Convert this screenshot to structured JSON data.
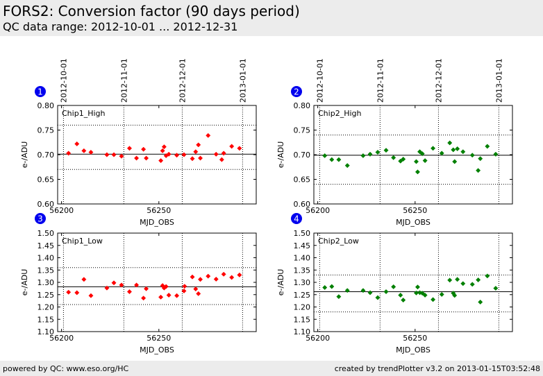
{
  "header": {
    "title": "FORS2: Conversion factor (90 days period)",
    "subtitle": "QC data range: 2012-10-01 ... 2012-12-31"
  },
  "footer": {
    "left": "powered by QC: www.eso.org/HC",
    "right": "created by trendPlotter v3.2 on 2013-01-15T03:52:48"
  },
  "colors": {
    "red_series": "#ff0000",
    "green_series": "#008000",
    "badge": "#0000ee",
    "header_bg": "#ececec"
  },
  "chart_data": [
    {
      "type": "scatter",
      "panel": "1",
      "label": "Chip1_High",
      "color": "#ff0000",
      "xlabel": "MJD_OBS",
      "ylabel": "e-/ADU",
      "xlim": [
        56198,
        56300
      ],
      "ylim": [
        0.6,
        0.8
      ],
      "yticks": [
        "0.60",
        "0.65",
        "0.70",
        "0.75",
        "0.80"
      ],
      "xticks": [
        56200,
        56250
      ],
      "date_ticks": [
        {
          "label": "2012-10-01",
          "x": 56201
        },
        {
          "label": "2012-11-01",
          "x": 56232
        },
        {
          "label": "2012-12-01",
          "x": 56262
        },
        {
          "label": "2013-01-01",
          "x": 56293
        }
      ],
      "mean": 0.701,
      "limits": [
        0.67,
        0.76
      ],
      "x": [
        56203.6,
        56207.9,
        56211.5,
        56215.1,
        56223.3,
        56226.9,
        56230.8,
        56234.9,
        56238.5,
        56242.1,
        56243.5,
        56251.0,
        56251.9,
        56252.7,
        56253.7,
        56255.1,
        56259.2,
        56262.9,
        56267.2,
        56268.9,
        56270.3,
        56271.3,
        56275.3,
        56279.4,
        56282.3,
        56283.3,
        56287.4,
        56291.4
      ],
      "y": [
        0.703,
        0.722,
        0.708,
        0.705,
        0.7,
        0.7,
        0.697,
        0.713,
        0.693,
        0.711,
        0.693,
        0.688,
        0.708,
        0.716,
        0.698,
        0.701,
        0.699,
        0.7,
        0.692,
        0.706,
        0.72,
        0.693,
        0.739,
        0.701,
        0.69,
        0.703,
        0.717,
        0.713
      ]
    },
    {
      "type": "scatter",
      "panel": "2",
      "label": "Chip2_High",
      "color": "#008000",
      "xlabel": "MJD_OBS",
      "ylabel": "e-/ADU",
      "xlim": [
        56198,
        56300
      ],
      "ylim": [
        0.6,
        0.8
      ],
      "yticks": [
        "0.60",
        "0.65",
        "0.70",
        "0.75",
        "0.80"
      ],
      "xticks": [
        56200,
        56250
      ],
      "date_ticks": [
        {
          "label": "2012-10-01",
          "x": 56201
        },
        {
          "label": "2012-11-01",
          "x": 56232
        },
        {
          "label": "2012-12-01",
          "x": 56262
        },
        {
          "label": "2013-01-01",
          "x": 56293
        }
      ],
      "mean": 0.699,
      "limits": [
        0.64,
        0.74
      ],
      "x": [
        56203.6,
        56207.2,
        56210.8,
        56215.2,
        56223.3,
        56226.9,
        56230.8,
        56235.1,
        56238.9,
        56242.5,
        56243.9,
        56250.6,
        56251.3,
        56252.4,
        56253.7,
        56255.1,
        56259.2,
        56263.7,
        56267.8,
        56269.6,
        56270.3,
        56271.7,
        56274.6,
        56279.4,
        56282.4,
        56283.5,
        56287.1,
        56291.4
      ],
      "y": [
        0.698,
        0.69,
        0.69,
        0.678,
        0.698,
        0.701,
        0.705,
        0.709,
        0.694,
        0.687,
        0.691,
        0.686,
        0.665,
        0.706,
        0.702,
        0.688,
        0.713,
        0.703,
        0.724,
        0.71,
        0.686,
        0.712,
        0.706,
        0.699,
        0.668,
        0.692,
        0.717,
        0.701
      ]
    },
    {
      "type": "scatter",
      "panel": "3",
      "label": "Chip1_Low",
      "color": "#ff0000",
      "xlabel": "MJD_OBS",
      "ylabel": "e-/ADU",
      "xlim": [
        56198,
        56300
      ],
      "ylim": [
        1.1,
        1.5
      ],
      "yticks": [
        "1.10",
        "1.15",
        "1.20",
        "1.25",
        "1.30",
        "1.35",
        "1.40",
        "1.45",
        "1.50"
      ],
      "xticks": [
        56200,
        56250
      ],
      "mean": 1.282,
      "limits": [
        1.21,
        1.36
      ],
      "x": [
        56203.6,
        56207.9,
        56211.5,
        56215.1,
        56223.3,
        56226.9,
        56230.8,
        56234.9,
        56238.5,
        56242.1,
        56243.5,
        56251.0,
        56251.9,
        56252.7,
        56253.7,
        56255.1,
        56259.2,
        56262.9,
        56263.2,
        56267.2,
        56268.9,
        56270.3,
        56271.3,
        56275.3,
        56279.4,
        56283.3,
        56287.4,
        56291.4
      ],
      "y": [
        1.26,
        1.258,
        1.312,
        1.246,
        1.277,
        1.298,
        1.289,
        1.262,
        1.289,
        1.236,
        1.274,
        1.24,
        1.287,
        1.277,
        1.283,
        1.248,
        1.246,
        1.265,
        1.284,
        1.322,
        1.273,
        1.254,
        1.312,
        1.325,
        1.313,
        1.333,
        1.32,
        1.33
      ]
    },
    {
      "type": "scatter",
      "panel": "4",
      "label": "Chip2_Low",
      "color": "#008000",
      "xlabel": "MJD_OBS",
      "ylabel": "e-/ADU",
      "xlim": [
        56198,
        56300
      ],
      "ylim": [
        1.1,
        1.5
      ],
      "yticks": [
        "1.10",
        "1.15",
        "1.20",
        "1.25",
        "1.30",
        "1.35",
        "1.40",
        "1.45",
        "1.50"
      ],
      "xticks": [
        56200,
        56250
      ],
      "mean": 1.262,
      "limits": [
        1.18,
        1.33
      ],
      "x": [
        56203.6,
        56207.2,
        56210.8,
        56215.2,
        56223.3,
        56226.9,
        56230.8,
        56235.1,
        56238.9,
        56242.5,
        56243.9,
        56250.6,
        56251.3,
        56252.4,
        56253.7,
        56255.1,
        56259.2,
        56263.7,
        56267.8,
        56269.6,
        56270.3,
        56271.7,
        56274.6,
        56279.4,
        56282.4,
        56283.5,
        56287.1,
        56291.4
      ],
      "y": [
        1.279,
        1.283,
        1.242,
        1.267,
        1.267,
        1.258,
        1.238,
        1.262,
        1.282,
        1.248,
        1.228,
        1.257,
        1.281,
        1.258,
        1.256,
        1.248,
        1.23,
        1.251,
        1.309,
        1.256,
        1.247,
        1.312,
        1.295,
        1.292,
        1.31,
        1.22,
        1.326,
        1.276
      ]
    }
  ]
}
